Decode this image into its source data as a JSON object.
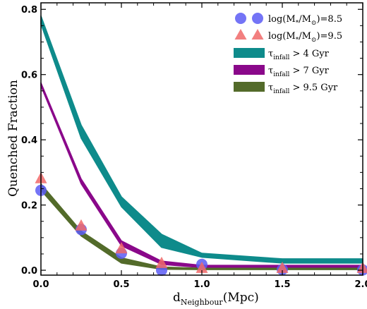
{
  "chart_data": {
    "type": "area",
    "xlabel_main": "d",
    "xlabel_sub": "Neighbour",
    "xlabel_unit": "(Mpc)",
    "ylabel": "Quenched Fraction",
    "xlim": [
      0.0,
      2.0
    ],
    "ylim": [
      -0.015,
      0.82
    ],
    "xticks": [
      "0.0",
      "0.5",
      "1.0",
      "1.5",
      "2.0"
    ],
    "yticks": [
      "0.0",
      "0.2",
      "0.4",
      "0.6",
      "0.8"
    ],
    "x": [
      0.0,
      0.25,
      0.5,
      0.75,
      1.0,
      1.5,
      2.0
    ],
    "bands": [
      {
        "name": "tau4",
        "color": "#0e8b8b",
        "lower": [
          0.755,
          0.405,
          0.195,
          0.07,
          0.04,
          0.022,
          0.022
        ],
        "upper": [
          0.78,
          0.445,
          0.225,
          0.11,
          0.052,
          0.035,
          0.035
        ]
      },
      {
        "name": "tau7",
        "color": "#8a088a",
        "lower": [
          0.565,
          0.265,
          0.075,
          0.018,
          0.008,
          0.008,
          0.008
        ],
        "upper": [
          0.575,
          0.28,
          0.09,
          0.028,
          0.015,
          0.015,
          0.015
        ]
      },
      {
        "name": "tau95",
        "color": "#536b2a",
        "lower": [
          0.245,
          0.105,
          0.022,
          0.003,
          0.002,
          0.002,
          0.002
        ],
        "upper": [
          0.265,
          0.12,
          0.038,
          0.01,
          0.006,
          0.006,
          0.006
        ]
      }
    ],
    "points": [
      {
        "name": "mass85",
        "marker": "circle",
        "color": "#5c5cf5",
        "x": [
          0.0,
          0.25,
          0.5,
          0.75,
          1.0,
          1.5,
          2.0
        ],
        "y": [
          0.245,
          0.125,
          0.052,
          0.0,
          0.018,
          0.002,
          0.001
        ]
      },
      {
        "name": "mass95",
        "marker": "triangle",
        "color": "#f06868",
        "x": [
          0.0,
          0.25,
          0.5,
          0.75,
          1.0,
          1.5,
          2.0
        ],
        "y": [
          0.28,
          0.135,
          0.065,
          0.02,
          0.005,
          0.005,
          0.005
        ]
      }
    ],
    "legend": {
      "placement": "top-right",
      "entries": [
        {
          "marker": "circle",
          "color": "#5c5cf5",
          "pre": "log(M",
          "sub1": "*",
          "mid": "/M",
          "sub2": "⊙",
          "post": ")=8.5"
        },
        {
          "marker": "triangle",
          "color": "#f06868",
          "pre": "log(M",
          "sub1": "*",
          "mid": "/M",
          "sub2": "⊙",
          "post": ")=9.5"
        },
        {
          "marker": "patch",
          "color": "#0e8b8b",
          "pre": "τ",
          "sub1": "infall",
          "mid": "",
          "sub2": "",
          "post": " > 4 Gyr"
        },
        {
          "marker": "patch",
          "color": "#8a088a",
          "pre": "τ",
          "sub1": "infall",
          "mid": "",
          "sub2": "",
          "post": " > 7 Gyr"
        },
        {
          "marker": "patch",
          "color": "#536b2a",
          "pre": "τ",
          "sub1": "infall",
          "mid": "",
          "sub2": "",
          "post": " > 9.5 Gyr"
        }
      ]
    },
    "grid": false
  }
}
